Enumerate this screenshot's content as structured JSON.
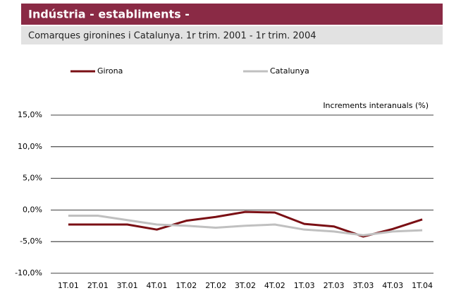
{
  "chart_data": {
    "type": "line",
    "title": "Indústria - establiments -",
    "subtitle": "Comarques gironines i Catalunya. 1r trim. 2001 - 1r trim. 2004",
    "annotation": "Increments interanuals (%)",
    "categories": [
      "1T.01",
      "2T.01",
      "3T.01",
      "4T.01",
      "1T.02",
      "2T.02",
      "3T.02",
      "4T.02",
      "1T.03",
      "2T.03",
      "3T.03",
      "4T.03",
      "1T.04"
    ],
    "series": [
      {
        "name": "Girona",
        "color": "#7a0f14",
        "values": [
          -2.3,
          -2.3,
          -2.3,
          -3.1,
          -1.7,
          -1.1,
          -0.3,
          -0.4,
          -2.2,
          -2.6,
          -4.2,
          -3.0,
          -1.5
        ]
      },
      {
        "name": "Catalunya",
        "color": "#c0c0c0",
        "values": [
          -0.9,
          -0.9,
          -1.6,
          -2.3,
          -2.5,
          -2.8,
          -2.5,
          -2.3,
          -3.1,
          -3.4,
          -4.0,
          -3.4,
          -3.2
        ]
      }
    ],
    "ylim": [
      -10,
      15
    ],
    "yticks": [
      {
        "value": -10,
        "label": "-10,0%"
      },
      {
        "value": -5,
        "label": "-5,0%"
      },
      {
        "value": 0,
        "label": "0,0%"
      },
      {
        "value": 5,
        "label": "5,0%"
      },
      {
        "value": 10,
        "label": "10,0%"
      },
      {
        "value": 15,
        "label": "15,0%"
      }
    ],
    "grid": true
  }
}
